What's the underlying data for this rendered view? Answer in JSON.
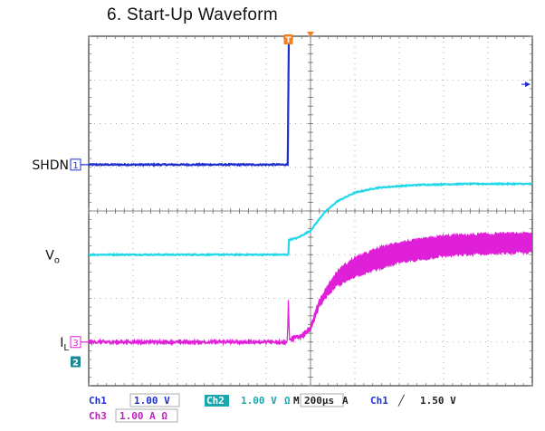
{
  "title": "6. Start-Up Waveform",
  "chart_data": {
    "type": "line",
    "title": "6. Start-Up Waveform",
    "xlabel": "",
    "ylabel": "",
    "x_divisions": 10,
    "y_divisions": 8,
    "timebase_per_div_us": 200,
    "xlim_us": [
      -1000,
      1000
    ],
    "trigger_time_us": -100,
    "grid": true,
    "series": [
      {
        "name": "SHDN",
        "marker": "1",
        "color": "#1f2fd0",
        "noise": 0.03,
        "points": [
          [
            -1000,
            1.06
          ],
          [
            -102,
            1.06
          ],
          [
            -98,
            4.36
          ],
          [
            1000,
            4.36
          ]
        ]
      },
      {
        "name": "Vo",
        "marker": "",
        "color": "#22d8e8",
        "noise": 0.025,
        "points": [
          [
            -1000,
            -1.0
          ],
          [
            -100,
            -1.0
          ],
          [
            -98,
            -0.66
          ],
          [
            -60,
            -0.62
          ],
          [
            0,
            -0.45
          ],
          [
            60,
            -0.05
          ],
          [
            120,
            0.22
          ],
          [
            200,
            0.42
          ],
          [
            300,
            0.53
          ],
          [
            400,
            0.57
          ],
          [
            500,
            0.6
          ],
          [
            700,
            0.62
          ],
          [
            1000,
            0.62
          ]
        ]
      },
      {
        "name": "IL",
        "marker": "3",
        "color": "#e020d8",
        "noise": 0.04,
        "band": true,
        "points": [
          [
            -1000,
            -3.0
          ],
          [
            -104,
            -3.0
          ],
          [
            -100,
            -2.05
          ],
          [
            -95,
            -2.95
          ],
          [
            -40,
            -2.85
          ],
          [
            0,
            -2.7
          ],
          [
            40,
            -2.1
          ],
          [
            80,
            -1.8
          ],
          [
            120,
            -1.55
          ],
          [
            200,
            -1.28
          ],
          [
            300,
            -1.1
          ],
          [
            400,
            -0.95
          ],
          [
            500,
            -0.88
          ],
          [
            600,
            -0.8
          ],
          [
            800,
            -0.75
          ],
          [
            1000,
            -0.73
          ]
        ],
        "band_width": [
          [
            -1000,
            0.02
          ],
          [
            -100,
            0.03
          ],
          [
            60,
            0.15
          ],
          [
            150,
            0.38
          ],
          [
            300,
            0.45
          ],
          [
            1000,
            0.42
          ]
        ]
      }
    ],
    "channel_labels": [
      {
        "text": "SHDN",
        "marker": "1",
        "series": "SHDN"
      },
      {
        "text": "V",
        "sub": "o",
        "series": "Vo"
      },
      {
        "text": "I",
        "sub": "L",
        "marker": "3",
        "series": "IL"
      }
    ],
    "extra_markers": [
      {
        "text": "2",
        "level": -3.45,
        "color": "#1a8a94"
      }
    ],
    "trigger_level_div": 2.9,
    "status": {
      "row1": [
        {
          "text": "Ch1",
          "color": "#1f2fd0",
          "box": false
        },
        {
          "text": "1.00 V",
          "color": "#1f2fd0",
          "box": true
        },
        {
          "text": "Ch2",
          "color": "#ffffff",
          "bg": "#1aa7b0",
          "box": false
        },
        {
          "text": "1.00 V",
          "color": "#1aa7b0",
          "box": false
        },
        {
          "text": "Ω",
          "color": "#1aa7b0",
          "box": false
        },
        {
          "text": "M",
          "color": "#222222",
          "box": false
        },
        {
          "text": "200µs",
          "color": "#222222",
          "box": true
        },
        {
          "text": "A",
          "color": "#222222",
          "box": false
        },
        {
          "text": "Ch1",
          "color": "#1f2fd0",
          "box": false
        },
        {
          "text": "╱",
          "color": "#222222",
          "box": false
        },
        {
          "text": "1.50 V",
          "color": "#222222",
          "box": false
        }
      ],
      "row2": [
        {
          "text": "Ch3",
          "color": "#c020c0",
          "box": false
        },
        {
          "text": "1.00 A Ω",
          "color": "#c020c0",
          "box": true
        }
      ]
    }
  }
}
